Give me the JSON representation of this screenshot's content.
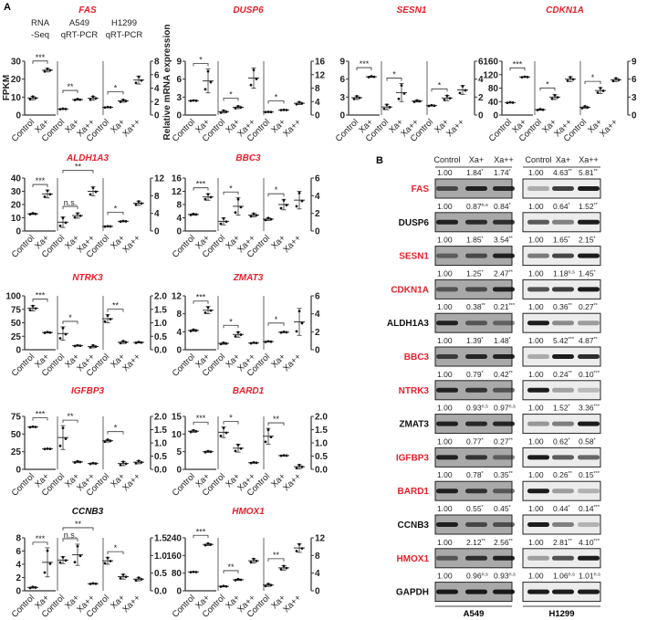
{
  "panel_labels": {
    "a": "A",
    "b": "B"
  },
  "axis_labels": {
    "left": "FPKM",
    "right": "Relative mRNA expression"
  },
  "section_labels": [
    "RNA\n-Seq",
    "A549\nqRT-PCR",
    "H1299\nqRT-PCR"
  ],
  "groups": [
    "Control",
    "Xa+",
    "Control",
    "Xa+",
    "Xa++",
    "Control",
    "Xa+",
    "Xa++"
  ],
  "colors": {
    "highlight_gene": "#e8202a",
    "normal_gene": "#111111"
  },
  "chart_data": [
    {
      "type": "scatter",
      "title": "FAS",
      "highlight": true,
      "left_ylim": [
        0,
        30
      ],
      "left_ticks": [
        "0",
        "10",
        "20",
        "30"
      ],
      "right_ylim": [
        0,
        8
      ],
      "right_ticks": [
        "0",
        "2",
        "4",
        "6",
        "8"
      ],
      "mean": [
        9.5,
        25,
        0.9,
        2.3,
        2.5,
        1.15,
        2.1,
        5.2
      ],
      "sd": [
        1,
        1,
        0.05,
        0.1,
        0.3,
        0.05,
        0.2,
        0.6
      ],
      "sig": [
        {
          "a": 0,
          "b": 1,
          "label": "***"
        },
        {
          "a": 2,
          "b": 3,
          "label": "**"
        },
        {
          "a": 5,
          "b": 6,
          "label": "*"
        }
      ]
    },
    {
      "type": "scatter",
      "title": "DUSP6",
      "highlight": true,
      "left_ylim": [
        0,
        9
      ],
      "left_ticks": [
        "0",
        "3",
        "6",
        "9"
      ],
      "right_ylim": [
        0,
        16
      ],
      "right_ticks": [
        "0",
        "4",
        "8",
        "12",
        "16"
      ],
      "mean": [
        2.4,
        5.7,
        1.0,
        2.3,
        11,
        0.9,
        1.5,
        3.5
      ],
      "sd": [
        0.05,
        2,
        0.4,
        0.4,
        3,
        0.05,
        0.05,
        0.4
      ],
      "sig": [
        {
          "a": 0,
          "b": 1,
          "label": "*"
        },
        {
          "a": 2,
          "b": 3,
          "label": "*"
        },
        {
          "a": 5,
          "b": 6,
          "label": "*"
        }
      ]
    },
    {
      "type": "scatter",
      "title": "SESN1",
      "highlight": true,
      "left_ylim": [
        0,
        9
      ],
      "left_ticks": [
        "0",
        "3",
        "6",
        "9"
      ],
      "right_ylim": [
        0,
        6
      ],
      "right_ticks": [
        "0",
        "2",
        "4",
        "6"
      ],
      "mean": [
        2.9,
        6.4,
        0.9,
        2.5,
        1.55,
        1.05,
        1.9,
        2.8
      ],
      "sd": [
        0.3,
        0.1,
        0.3,
        1,
        0.1,
        0.05,
        0.3,
        0.5
      ],
      "sig": [
        {
          "a": 0,
          "b": 1,
          "label": "***"
        },
        {
          "a": 2,
          "b": 3,
          "label": "*"
        },
        {
          "a": 5,
          "b": 6,
          "label": "*"
        }
      ]
    },
    {
      "type": "scatter",
      "title": "CDKN1A",
      "highlight": true,
      "left_ylim": [
        0,
        160
      ],
      "left_ticks": [
        "0",
        "40",
        "80",
        "120",
        "160"
      ],
      "right_ylim": [
        0,
        9
      ],
      "right_ticks": [
        "0",
        "3",
        "6",
        "9"
      ],
      "mean": [
        37,
        113,
        0.9,
        3,
        6,
        1.3,
        4.1,
        5.9
      ],
      "sd": [
        1,
        1,
        0.1,
        0.4,
        0.4,
        0.2,
        0.5,
        0.3
      ],
      "sig": [
        {
          "a": 0,
          "b": 1,
          "label": "***"
        },
        {
          "a": 2,
          "b": 3,
          "label": "*"
        },
        {
          "a": 5,
          "b": 6,
          "label": "*"
        }
      ]
    },
    {
      "type": "scatter",
      "title": "ALDH1A3",
      "highlight": true,
      "left_ylim": [
        0,
        40
      ],
      "left_ticks": [
        "0",
        "10",
        "20",
        "30",
        "40"
      ],
      "right_ylim": [
        0,
        12
      ],
      "right_ticks": [
        "0",
        "4",
        "8",
        "12"
      ],
      "mean": [
        13,
        28,
        2,
        3.5,
        9,
        1.05,
        2.2,
        6.3
      ],
      "sd": [
        0.5,
        3,
        1.2,
        0.6,
        1,
        0.05,
        0.1,
        0.5
      ],
      "sig": [
        {
          "a": 0,
          "b": 1,
          "label": "***"
        },
        {
          "a": 2,
          "b": 3,
          "label": "n.s."
        },
        {
          "a": 2,
          "b": 4,
          "label": "**",
          "level": 1
        },
        {
          "a": 5,
          "b": 6,
          "label": "*"
        }
      ]
    },
    {
      "type": "scatter",
      "title": "BBC3",
      "highlight": true,
      "left_ylim": [
        0,
        16
      ],
      "left_ticks": [
        "0",
        "4",
        "8",
        "12",
        "16"
      ],
      "right_ylim": [
        0,
        6
      ],
      "right_ticks": [
        "0",
        "2",
        "4",
        "6"
      ],
      "mean": [
        5,
        10.3,
        1.1,
        2.8,
        1.8,
        1.35,
        3,
        3.5
      ],
      "sd": [
        0.2,
        1,
        0.4,
        1,
        0.2,
        0.15,
        0.6,
        1
      ],
      "sig": [
        {
          "a": 0,
          "b": 1,
          "label": "***"
        },
        {
          "a": 2,
          "b": 3,
          "label": "*"
        },
        {
          "a": 5,
          "b": 6,
          "label": "*"
        }
      ]
    },
    {
      "type": "scatter",
      "title": "NTRK3",
      "highlight": true,
      "left_ylim": [
        0,
        100
      ],
      "left_ticks": [
        "0",
        "25",
        "50",
        "75",
        "100"
      ],
      "right_ylim": [
        0,
        2
      ],
      "right_ticks": [
        "0.0",
        "0.5",
        "1.0",
        "1.5",
        "2.0"
      ],
      "mean": [
        77,
        32,
        0.6,
        0.15,
        0.12,
        1.15,
        0.28,
        0.27
      ],
      "sd": [
        5,
        1,
        0.25,
        0.02,
        0.05,
        0.15,
        0.05,
        0.02
      ],
      "sig": [
        {
          "a": 0,
          "b": 1,
          "label": "***"
        },
        {
          "a": 2,
          "b": 3,
          "label": "*"
        },
        {
          "a": 5,
          "b": 6,
          "label": "**"
        }
      ]
    },
    {
      "type": "scatter",
      "title": "ZMAT3",
      "highlight": true,
      "left_ylim": [
        0,
        12
      ],
      "left_ticks": [
        "0",
        "4",
        "8",
        "12"
      ],
      "right_ylim": [
        0,
        6
      ],
      "right_ticks": [
        "0",
        "2",
        "4",
        "6"
      ],
      "mean": [
        4.3,
        8.8,
        0.7,
        1.7,
        0.75,
        0.9,
        1.95,
        3.1
      ],
      "sd": [
        0.2,
        0.8,
        0.1,
        0.3,
        0.05,
        0.05,
        0.05,
        1.5
      ],
      "sig": [
        {
          "a": 0,
          "b": 1,
          "label": "***"
        },
        {
          "a": 2,
          "b": 3,
          "label": "*"
        },
        {
          "a": 5,
          "b": 6,
          "label": "*"
        }
      ]
    },
    {
      "type": "scatter",
      "title": "IGFBP3",
      "highlight": true,
      "left_ylim": [
        0,
        75
      ],
      "left_ticks": [
        "0",
        "25",
        "50",
        "75"
      ],
      "right_ylim": [
        0,
        2
      ],
      "right_ticks": [
        "0.0",
        "0.5",
        "1.0",
        "1.5",
        "2.0"
      ],
      "mean": [
        60,
        29,
        1.2,
        0.28,
        0.22,
        1.08,
        0.22,
        0.27
      ],
      "sd": [
        0.5,
        0.3,
        0.45,
        0.03,
        0.02,
        0.05,
        0.08,
        0.06
      ],
      "sig": [
        {
          "a": 0,
          "b": 1,
          "label": "***"
        },
        {
          "a": 2,
          "b": 3,
          "label": "**"
        },
        {
          "a": 5,
          "b": 6,
          "label": "*"
        }
      ]
    },
    {
      "type": "scatter",
      "title": "BARD1",
      "highlight": true,
      "left_ylim": [
        0,
        15
      ],
      "left_ticks": [
        "0",
        "5",
        "10",
        "15"
      ],
      "right_ylim": [
        0,
        2
      ],
      "right_ticks": [
        "0.0",
        "0.5",
        "1.0",
        "1.5",
        "2.0"
      ],
      "mean": [
        10.8,
        5,
        1.4,
        0.8,
        0.25,
        1.25,
        0.52,
        0.1
      ],
      "sd": [
        0.3,
        0.2,
        0.2,
        0.15,
        0.02,
        0.3,
        0.01,
        0.08
      ],
      "sig": [
        {
          "a": 0,
          "b": 1,
          "label": "***"
        },
        {
          "a": 2,
          "b": 3,
          "label": "*"
        },
        {
          "a": 5,
          "b": 6,
          "label": "**"
        }
      ]
    },
    {
      "type": "scatter",
      "title": "CCNB3",
      "highlight": false,
      "left_ylim": [
        0,
        8
      ],
      "left_ticks": [
        "0",
        "2",
        "4",
        "6",
        "8"
      ],
      "right_ylim": [
        0,
        1.5
      ],
      "right_ticks": [
        "0.0",
        "0.5",
        "1.0",
        "1.5"
      ],
      "mean": [
        0.5,
        4.3,
        0.87,
        1.02,
        0.2,
        0.85,
        0.4,
        0.33
      ],
      "sd": [
        0.1,
        2.2,
        0.1,
        0.3,
        0.01,
        0.1,
        0.07,
        0.05
      ],
      "sig": [
        {
          "a": 0,
          "b": 1,
          "label": "***"
        },
        {
          "a": 2,
          "b": 3,
          "label": "n.s."
        },
        {
          "a": 2,
          "b": 4,
          "label": "**",
          "level": 1
        },
        {
          "a": 5,
          "b": 6,
          "label": "*"
        }
      ]
    },
    {
      "type": "scatter",
      "title": "HMOX1",
      "highlight": true,
      "left_ylim": [
        0,
        240
      ],
      "left_ticks": [
        "0",
        "80",
        "160",
        "240"
      ],
      "right_ylim": [
        0,
        12
      ],
      "right_ticks": [
        "0",
        "4",
        "8",
        "12"
      ],
      "mean": [
        85,
        210,
        1,
        2.5,
        6.8,
        1.3,
        5.2,
        9.7
      ],
      "sd": [
        1,
        5,
        0.1,
        0.15,
        0.5,
        0.3,
        0.5,
        1
      ],
      "sig": [
        {
          "a": 0,
          "b": 1,
          "label": "***"
        },
        {
          "a": 2,
          "b": 3,
          "label": "**"
        },
        {
          "a": 5,
          "b": 6,
          "label": "**"
        }
      ]
    }
  ],
  "western": {
    "columns": [
      "Control",
      "Xa+",
      "Xa++"
    ],
    "cell_lines": [
      "A549",
      "H1299"
    ],
    "rows": [
      {
        "protein": "FAS",
        "highlight": true,
        "a549": [
          [
            "1.00",
            ""
          ],
          [
            "1.84",
            "*"
          ],
          [
            "1.74",
            "*"
          ]
        ],
        "h1299": [
          [
            "1.00",
            ""
          ],
          [
            "4.63",
            "**"
          ],
          [
            "5.81",
            "**"
          ]
        ]
      },
      {
        "protein": "DUSP6",
        "highlight": false,
        "a549": [
          [
            "1.00",
            ""
          ],
          [
            "0.87",
            "n.s"
          ],
          [
            "0.84",
            "*"
          ]
        ],
        "h1299": [
          [
            "1.00",
            ""
          ],
          [
            "0.64",
            "*"
          ],
          [
            "1.52",
            "**"
          ]
        ]
      },
      {
        "protein": "SESN1",
        "highlight": true,
        "a549": [
          [
            "1.00",
            ""
          ],
          [
            "1.85",
            "*"
          ],
          [
            "3.54",
            "**"
          ]
        ],
        "h1299": [
          [
            "1.00",
            ""
          ],
          [
            "1.65",
            "*"
          ],
          [
            "2.15",
            "*"
          ]
        ]
      },
      {
        "protein": "CDKN1A",
        "highlight": true,
        "a549": [
          [
            "1.00",
            ""
          ],
          [
            "1.25",
            "*"
          ],
          [
            "2.47",
            "**"
          ]
        ],
        "h1299": [
          [
            "1.00",
            ""
          ],
          [
            "1.18",
            "n.s"
          ],
          [
            "1.45",
            "*"
          ]
        ]
      },
      {
        "protein": "ALDH1A3",
        "highlight": false,
        "a549": [
          [
            "1.00",
            ""
          ],
          [
            "0.38",
            "**"
          ],
          [
            "0.21",
            "***"
          ]
        ],
        "h1299": [
          [
            "1.00",
            ""
          ],
          [
            "0.36",
            "**"
          ],
          [
            "0.27",
            "**"
          ]
        ]
      },
      {
        "protein": "BBC3",
        "highlight": true,
        "a549": [
          [
            "1.00",
            ""
          ],
          [
            "1.39",
            "*"
          ],
          [
            "1.48",
            "*"
          ]
        ],
        "h1299": [
          [
            "1.00",
            ""
          ],
          [
            "5.42",
            "***"
          ],
          [
            "4.87",
            "**"
          ]
        ]
      },
      {
        "protein": "NTRK3",
        "highlight": true,
        "a549": [
          [
            "1.00",
            ""
          ],
          [
            "0.79",
            "*"
          ],
          [
            "0.42",
            "**"
          ]
        ],
        "h1299": [
          [
            "1.00",
            ""
          ],
          [
            "0.24",
            "**"
          ],
          [
            "0.10",
            "***"
          ]
        ]
      },
      {
        "protein": "ZMAT3",
        "highlight": false,
        "a549": [
          [
            "1.00",
            ""
          ],
          [
            "0.93",
            "n.s"
          ],
          [
            "0.97",
            "n.s"
          ]
        ],
        "h1299": [
          [
            "1.00",
            ""
          ],
          [
            "1.52",
            "*"
          ],
          [
            "3.36",
            "***"
          ]
        ]
      },
      {
        "protein": "IGFBP3",
        "highlight": true,
        "a549": [
          [
            "1.00",
            ""
          ],
          [
            "0.77",
            "*"
          ],
          [
            "0.27",
            "**"
          ]
        ],
        "h1299": [
          [
            "1.00",
            ""
          ],
          [
            "0.62",
            "*"
          ],
          [
            "0.58",
            "*"
          ]
        ]
      },
      {
        "protein": "BARD1",
        "highlight": true,
        "a549": [
          [
            "1.00",
            ""
          ],
          [
            "0.78",
            "*"
          ],
          [
            "0.35",
            "**"
          ]
        ],
        "h1299": [
          [
            "1.00",
            ""
          ],
          [
            "0.26",
            "**"
          ],
          [
            "0.15",
            "***"
          ]
        ]
      },
      {
        "protein": "CCNB3",
        "highlight": false,
        "a549": [
          [
            "1.00",
            ""
          ],
          [
            "0.55",
            "*"
          ],
          [
            "0.45",
            "*"
          ]
        ],
        "h1299": [
          [
            "1.00",
            ""
          ],
          [
            "0.44",
            "*"
          ],
          [
            "0.14",
            "***"
          ]
        ]
      },
      {
        "protein": "HMOX1",
        "highlight": true,
        "a549": [
          [
            "1.00",
            ""
          ],
          [
            "2.12",
            "**"
          ],
          [
            "2.56",
            "**"
          ]
        ],
        "h1299": [
          [
            "1.00",
            ""
          ],
          [
            "2.81",
            "**"
          ],
          [
            "4.10",
            "***"
          ]
        ]
      },
      {
        "protein": "GAPDH",
        "highlight": false,
        "a549": [
          [
            "1.00",
            ""
          ],
          [
            "0.96",
            "n.s"
          ],
          [
            "0.93",
            "n.s"
          ]
        ],
        "h1299": [
          [
            "1.00",
            ""
          ],
          [
            "1.06",
            "n.s"
          ],
          [
            "1.01",
            "n.s"
          ]
        ]
      }
    ]
  }
}
